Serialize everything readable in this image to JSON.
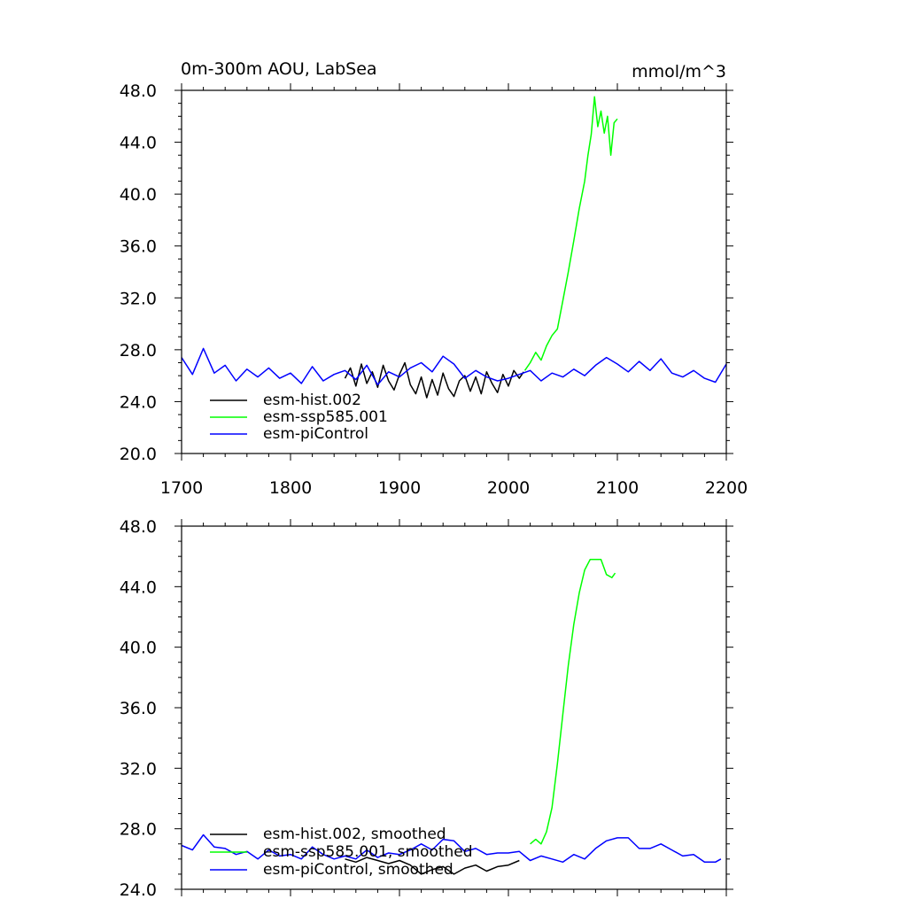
{
  "chart_data": [
    {
      "type": "line",
      "title": "0m-300m AOU, LabSea",
      "units_label": "mmol/m^3",
      "xlim": [
        1700,
        2200
      ],
      "ylim": [
        20,
        48
      ],
      "x_ticks": [
        "1700",
        "1800",
        "1900",
        "2000",
        "2100",
        "2200"
      ],
      "y_ticks": [
        "20.0",
        "24.0",
        "28.0",
        "32.0",
        "36.0",
        "40.0",
        "44.0",
        "48.0"
      ],
      "legend_position": "lower-left",
      "series": [
        {
          "name": "esm-hist.002",
          "color": "#000000",
          "x": [
            1850,
            1855,
            1860,
            1865,
            1870,
            1875,
            1880,
            1885,
            1890,
            1895,
            1900,
            1905,
            1910,
            1915,
            1920,
            1925,
            1930,
            1935,
            1940,
            1945,
            1950,
            1955,
            1960,
            1965,
            1970,
            1975,
            1980,
            1985,
            1990,
            1995,
            2000,
            2005,
            2010,
            2014
          ],
          "y": [
            25.8,
            26.6,
            25.2,
            26.9,
            25.4,
            26.3,
            25.1,
            26.8,
            25.6,
            24.9,
            26.1,
            27.0,
            25.3,
            24.6,
            25.9,
            24.3,
            25.7,
            24.5,
            26.2,
            25.0,
            24.4,
            25.6,
            26.0,
            24.8,
            25.9,
            24.6,
            26.3,
            25.4,
            24.7,
            26.1,
            25.2,
            26.4,
            25.8,
            26.3
          ]
        },
        {
          "name": "esm-ssp585.001",
          "color": "#00ff00",
          "x": [
            2015,
            2020,
            2025,
            2030,
            2035,
            2040,
            2045,
            2050,
            2055,
            2060,
            2065,
            2070,
            2073,
            2076,
            2079,
            2082,
            2085,
            2088,
            2091,
            2094,
            2097,
            2100
          ],
          "y": [
            26.4,
            27.0,
            27.8,
            27.2,
            28.3,
            29.1,
            29.6,
            31.8,
            34.0,
            36.4,
            38.9,
            41.0,
            43.0,
            44.6,
            47.5,
            45.2,
            46.4,
            44.7,
            46.0,
            43.0,
            45.5,
            45.8
          ]
        },
        {
          "name": "esm-piControl",
          "color": "#0000ff",
          "x": [
            1700,
            1710,
            1720,
            1730,
            1740,
            1750,
            1760,
            1770,
            1780,
            1790,
            1800,
            1810,
            1820,
            1830,
            1840,
            1850,
            1860,
            1870,
            1880,
            1890,
            1900,
            1910,
            1920,
            1930,
            1940,
            1950,
            1960,
            1970,
            1980,
            1990,
            2000,
            2010,
            2020,
            2030,
            2040,
            2050,
            2060,
            2070,
            2080,
            2090,
            2100,
            2110,
            2120,
            2130,
            2140,
            2150,
            2160,
            2170,
            2180,
            2190,
            2200
          ],
          "y": [
            27.4,
            26.1,
            28.1,
            26.2,
            26.8,
            25.6,
            26.5,
            25.9,
            26.6,
            25.8,
            26.2,
            25.4,
            26.7,
            25.6,
            26.1,
            26.4,
            25.7,
            26.8,
            25.3,
            26.3,
            25.9,
            26.6,
            27.0,
            26.3,
            27.5,
            26.9,
            25.8,
            26.4,
            25.9,
            25.6,
            25.8,
            26.1,
            26.4,
            25.6,
            26.2,
            25.9,
            26.5,
            26.0,
            26.8,
            27.4,
            26.9,
            26.3,
            27.1,
            26.4,
            27.3,
            26.2,
            25.9,
            26.4,
            25.8,
            25.5,
            26.9
          ]
        }
      ]
    },
    {
      "type": "line",
      "title": "",
      "xlim": [
        1700,
        2200
      ],
      "ylim": [
        24,
        48
      ],
      "y_ticks": [
        "24.0",
        "28.0",
        "32.0",
        "36.0",
        "40.0",
        "44.0",
        "48.0"
      ],
      "legend_position": "lower-left",
      "series": [
        {
          "name": "esm-hist.002, smoothed",
          "color": "#000000",
          "x": [
            1850,
            1860,
            1870,
            1880,
            1890,
            1900,
            1910,
            1920,
            1930,
            1940,
            1950,
            1960,
            1970,
            1980,
            1990,
            2000,
            2010
          ],
          "y": [
            26.0,
            25.8,
            26.1,
            25.9,
            25.7,
            25.9,
            25.6,
            25.0,
            25.3,
            25.5,
            25.0,
            25.4,
            25.6,
            25.2,
            25.5,
            25.6,
            25.9
          ]
        },
        {
          "name": "esm-ssp585.001, smoothed",
          "color": "#00ff00",
          "x": [
            2020,
            2025,
            2030,
            2035,
            2040,
            2045,
            2050,
            2055,
            2060,
            2065,
            2070,
            2075,
            2080,
            2085,
            2090,
            2095,
            2098
          ],
          "y": [
            27.0,
            27.3,
            27.0,
            27.8,
            29.4,
            32.3,
            35.6,
            38.8,
            41.5,
            43.6,
            45.1,
            45.8,
            45.8,
            45.8,
            44.8,
            44.6,
            44.9
          ]
        },
        {
          "name": "esm-piControl, smoothed",
          "color": "#0000ff",
          "x": [
            1700,
            1710,
            1720,
            1730,
            1740,
            1750,
            1760,
            1770,
            1780,
            1790,
            1800,
            1810,
            1820,
            1830,
            1840,
            1850,
            1860,
            1870,
            1880,
            1890,
            1900,
            1910,
            1920,
            1930,
            1940,
            1950,
            1960,
            1970,
            1980,
            1990,
            2000,
            2010,
            2020,
            2030,
            2040,
            2050,
            2060,
            2070,
            2080,
            2090,
            2100,
            2110,
            2120,
            2130,
            2140,
            2150,
            2160,
            2170,
            2180,
            2190,
            2195
          ],
          "y": [
            26.9,
            26.6,
            27.6,
            26.8,
            26.7,
            26.3,
            26.5,
            26.0,
            26.6,
            26.2,
            26.3,
            26.0,
            26.8,
            26.3,
            26.0,
            26.2,
            26.0,
            26.6,
            26.1,
            26.4,
            26.3,
            26.6,
            27.0,
            26.6,
            27.3,
            27.2,
            26.5,
            26.7,
            26.3,
            26.4,
            26.4,
            26.5,
            25.9,
            26.2,
            26.0,
            25.8,
            26.3,
            26.0,
            26.7,
            27.2,
            27.4,
            27.4,
            26.7,
            26.7,
            27.0,
            26.6,
            26.2,
            26.3,
            25.8,
            25.8,
            26.0
          ]
        }
      ]
    }
  ]
}
